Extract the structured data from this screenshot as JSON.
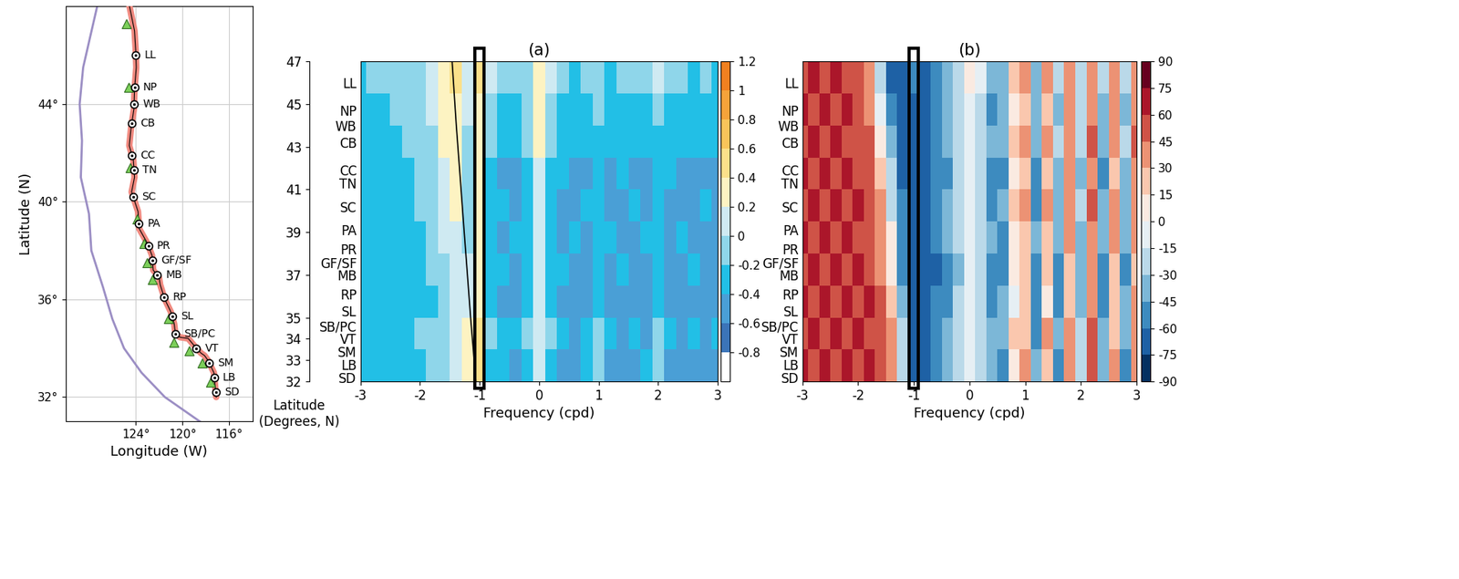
{
  "sites": [
    {
      "label": "LL",
      "lat": 46.0
    },
    {
      "label": "NP",
      "lat": 44.7
    },
    {
      "label": "WB",
      "lat": 44.0
    },
    {
      "label": "CB",
      "lat": 43.2
    },
    {
      "label": "CC",
      "lat": 41.9
    },
    {
      "label": "TN",
      "lat": 41.3
    },
    {
      "label": "SC",
      "lat": 40.2
    },
    {
      "label": "PA",
      "lat": 39.1
    },
    {
      "label": "PR",
      "lat": 38.2
    },
    {
      "label": "GF/SF",
      "lat": 37.6
    },
    {
      "label": "MB",
      "lat": 37.0
    },
    {
      "label": "RP",
      "lat": 36.1
    },
    {
      "label": "SL",
      "lat": 35.3
    },
    {
      "label": "SB/PC",
      "lat": 34.6
    },
    {
      "label": "VT",
      "lat": 34.0
    },
    {
      "label": "SM",
      "lat": 33.4
    },
    {
      "label": "LB",
      "lat": 32.8
    },
    {
      "label": "SD",
      "lat": 32.2
    }
  ],
  "map": {
    "type": "map",
    "xlabel": "Longitude (W)",
    "ylabel": "Latitude (N)",
    "xlim": [
      130,
      114
    ],
    "ylim": [
      31,
      48
    ],
    "xticks": [
      {
        "value": 124,
        "label": "124°"
      },
      {
        "value": 120,
        "label": "120°"
      },
      {
        "value": 116,
        "label": "116°"
      }
    ],
    "yticks": [
      {
        "value": 32,
        "label": "32°"
      },
      {
        "value": 36,
        "label": "36°"
      },
      {
        "value": 40,
        "label": "40°"
      },
      {
        "value": 44,
        "label": "44°"
      }
    ],
    "grid": true,
    "coastline": {
      "lon": [
        124.7,
        124.1,
        124.0,
        123.95,
        124.1,
        124.15,
        124.4,
        124.55,
        124.2,
        124.1,
        124.35,
        123.8,
        123.7,
        123.0,
        122.6,
        122.5,
        122.0,
        121.9,
        121.5,
        121.0,
        120.7,
        120.6,
        120.2,
        119.5,
        118.8,
        118.4,
        118.1,
        117.8,
        117.3,
        117.2,
        117.1
      ],
      "lat": [
        48.4,
        47.0,
        46.2,
        45.5,
        44.6,
        43.8,
        43.0,
        42.3,
        41.7,
        41.0,
        40.4,
        39.6,
        38.9,
        38.3,
        37.8,
        37.2,
        36.9,
        36.6,
        36.0,
        35.5,
        35.0,
        34.6,
        34.45,
        34.4,
        34.0,
        33.8,
        33.7,
        33.5,
        33.0,
        32.5,
        32.0
      ]
    },
    "boundary": {
      "lon": [
        127.3,
        128.5,
        128.8,
        128.6,
        128.7,
        128.0,
        127.8,
        126.8,
        126.0,
        125.0,
        123.5,
        121.5,
        120.0,
        118.5
      ],
      "lat": [
        48.0,
        45.5,
        44.0,
        42.5,
        41.0,
        39.5,
        38.0,
        36.5,
        35.2,
        34.0,
        33.0,
        32.0,
        31.5,
        31.0
      ]
    },
    "buoys": {
      "lon": [
        124.8,
        124.6,
        124.5,
        123.9,
        123.3,
        123.0,
        122.6,
        121.2,
        120.7,
        119.4,
        118.3,
        117.6
      ],
      "lat": [
        47.3,
        44.7,
        41.4,
        39.3,
        38.3,
        37.5,
        36.8,
        35.2,
        34.25,
        33.9,
        33.4,
        32.6
      ]
    }
  },
  "chart_data": [
    {
      "type": "heatmap",
      "title": "(a)",
      "xlabel": "Frequency (cpd)",
      "ylabel": "Latitude\n(Degrees, N)",
      "xlim": [
        -3,
        3
      ],
      "xticks": [
        -3,
        -2,
        -1,
        0,
        1,
        2,
        3
      ],
      "ylim": [
        32,
        47
      ],
      "yticks": [
        47,
        45,
        43,
        41,
        39,
        37,
        35,
        34,
        33,
        32
      ],
      "freq_edges": [
        -3.1,
        -2.9,
        -2.7,
        -2.5,
        -2.3,
        -2.1,
        -1.9,
        -1.7,
        -1.5,
        -1.3,
        -1.1,
        -0.9,
        -0.7,
        -0.5,
        -0.3,
        -0.1,
        0.1,
        0.3,
        0.5,
        0.7,
        0.9,
        1.1,
        1.3,
        1.5,
        1.7,
        1.9,
        2.1,
        2.3,
        2.5,
        2.7,
        2.9,
        3.1
      ],
      "lat_edges": [
        32,
        33.5,
        35,
        36.5,
        38,
        39.5,
        41,
        42.5,
        44,
        45.5,
        47
      ],
      "cells": [
        [
          -0.4,
          -0.4,
          -0.3,
          -0.4,
          -0.3,
          -0.3,
          -0.2,
          -0.1,
          0.0,
          0.3,
          0.4,
          -0.3,
          -0.4,
          -0.5,
          -0.3,
          0.1,
          -0.3,
          -0.5,
          -0.5,
          -0.4,
          -0.1,
          -0.5,
          -0.5,
          -0.5,
          -0.4,
          -0.1,
          -0.5,
          -0.5,
          -0.5,
          -0.5,
          -0.5
        ],
        [
          -0.4,
          -0.3,
          -0.4,
          -0.3,
          -0.3,
          -0.2,
          -0.2,
          -0.1,
          0.1,
          0.3,
          0.4,
          -0.2,
          -0.4,
          -0.4,
          -0.2,
          0.1,
          -0.2,
          -0.4,
          -0.5,
          -0.4,
          -0.2,
          -0.4,
          -0.5,
          -0.4,
          -0.5,
          -0.2,
          -0.4,
          -0.5,
          -0.4,
          -0.5,
          -0.4
        ],
        [
          -0.4,
          -0.4,
          -0.4,
          -0.3,
          -0.4,
          -0.3,
          -0.3,
          -0.1,
          0.1,
          0.1,
          0.3,
          -0.3,
          -0.5,
          -0.5,
          -0.3,
          0.0,
          -0.3,
          -0.5,
          -0.5,
          -0.5,
          -0.3,
          -0.5,
          -0.5,
          -0.5,
          -0.5,
          -0.3,
          -0.5,
          -0.5,
          -0.5,
          -0.5,
          -0.5
        ],
        [
          -0.4,
          -0.4,
          -0.3,
          -0.4,
          -0.3,
          -0.3,
          -0.2,
          -0.1,
          0.1,
          0.0,
          0.3,
          -0.3,
          -0.4,
          -0.5,
          -0.3,
          0.0,
          -0.3,
          -0.4,
          -0.5,
          -0.5,
          -0.3,
          -0.5,
          -0.4,
          -0.5,
          -0.5,
          -0.3,
          -0.5,
          -0.5,
          -0.4,
          -0.5,
          -0.5
        ],
        [
          -0.4,
          -0.4,
          -0.4,
          -0.3,
          -0.3,
          -0.3,
          -0.2,
          0.0,
          0.1,
          -0.1,
          0.3,
          -0.3,
          -0.5,
          -0.4,
          -0.3,
          0.0,
          -0.3,
          -0.5,
          -0.4,
          -0.5,
          -0.3,
          -0.4,
          -0.5,
          -0.5,
          -0.4,
          -0.3,
          -0.5,
          -0.4,
          -0.5,
          -0.5,
          -0.5
        ],
        [
          -0.4,
          -0.4,
          -0.3,
          -0.3,
          -0.3,
          -0.2,
          -0.2,
          0.0,
          0.2,
          -0.1,
          0.3,
          -0.3,
          -0.4,
          -0.5,
          -0.3,
          0.1,
          -0.3,
          -0.5,
          -0.5,
          -0.4,
          -0.3,
          -0.5,
          -0.5,
          -0.4,
          -0.5,
          -0.3,
          -0.5,
          -0.5,
          -0.5,
          -0.4,
          -0.5
        ],
        [
          -0.4,
          -0.3,
          -0.4,
          -0.3,
          -0.3,
          -0.2,
          -0.1,
          0.1,
          0.2,
          -0.1,
          0.3,
          -0.3,
          -0.5,
          -0.5,
          -0.3,
          0.1,
          -0.3,
          -0.4,
          -0.5,
          -0.5,
          -0.3,
          -0.5,
          -0.4,
          -0.5,
          -0.5,
          -0.3,
          -0.4,
          -0.5,
          -0.5,
          -0.5,
          -0.5
        ],
        [
          -0.3,
          -0.4,
          -0.3,
          -0.3,
          -0.2,
          -0.2,
          -0.1,
          0.2,
          0.3,
          -0.1,
          0.3,
          -0.2,
          -0.4,
          -0.4,
          -0.2,
          0.2,
          -0.2,
          -0.4,
          -0.4,
          -0.4,
          -0.3,
          -0.4,
          -0.4,
          -0.4,
          -0.4,
          -0.3,
          -0.4,
          -0.4,
          -0.4,
          -0.4,
          -0.4
        ],
        [
          -0.3,
          -0.3,
          -0.3,
          -0.2,
          -0.2,
          -0.1,
          0.0,
          0.3,
          0.3,
          0.0,
          0.3,
          -0.2,
          -0.3,
          -0.3,
          -0.2,
          0.2,
          -0.2,
          -0.3,
          -0.4,
          -0.3,
          -0.2,
          -0.3,
          -0.4,
          -0.3,
          -0.4,
          -0.2,
          -0.3,
          -0.4,
          -0.3,
          -0.4,
          -0.3
        ],
        [
          -0.3,
          -0.2,
          -0.2,
          -0.2,
          -0.1,
          -0.1,
          0.1,
          0.3,
          0.4,
          0.1,
          0.4,
          0.0,
          -0.2,
          -0.2,
          -0.1,
          0.3,
          0.1,
          -0.2,
          -0.3,
          -0.2,
          -0.1,
          -0.3,
          -0.2,
          -0.2,
          -0.1,
          0.1,
          -0.2,
          -0.2,
          -0.3,
          -0.2,
          -0.3
        ]
      ],
      "cbar_bounds": [
        -1.0,
        -0.8,
        -0.6,
        -0.4,
        -0.2,
        0,
        0.2,
        0.4,
        0.6,
        0.8,
        1.0,
        1.2
      ],
      "cbar_ticks": [
        -0.8,
        -0.6,
        -0.4,
        -0.2,
        0,
        0.2,
        0.4,
        0.6,
        0.8,
        1,
        1.2
      ],
      "inertial_line": {
        "lat": [
          32,
          35,
          38,
          41,
          44,
          47
        ],
        "freq": [
          -1.06,
          -1.15,
          -1.23,
          -1.31,
          -1.39,
          -1.46
        ]
      },
      "highlight": [
        -1.08,
        -0.92
      ]
    },
    {
      "type": "heatmap",
      "title": "(b)",
      "xlabel": "Frequency (cpd)",
      "xlim": [
        -3,
        3
      ],
      "xticks": [
        -3,
        -2,
        -1,
        0,
        1,
        2,
        3
      ],
      "ylim": [
        32,
        47
      ],
      "freq_edges": [
        -3.1,
        -2.9,
        -2.7,
        -2.5,
        -2.3,
        -2.1,
        -1.9,
        -1.7,
        -1.5,
        -1.3,
        -1.1,
        -0.9,
        -0.7,
        -0.5,
        -0.3,
        -0.1,
        0.1,
        0.3,
        0.5,
        0.7,
        0.9,
        1.1,
        1.3,
        1.5,
        1.7,
        1.9,
        2.1,
        2.3,
        2.5,
        2.7,
        2.9,
        3.1
      ],
      "lat_edges": [
        32,
        33.5,
        35,
        36.5,
        38,
        39.5,
        41,
        42.5,
        44,
        45.5,
        47
      ],
      "cells": [
        [
          60,
          55,
          65,
          50,
          60,
          55,
          60,
          50,
          40,
          -20,
          -70,
          -75,
          -60,
          -45,
          -30,
          -10,
          -20,
          -40,
          -50,
          10,
          30,
          -40,
          20,
          -50,
          40,
          -30,
          50,
          -40,
          30,
          -50,
          40
        ],
        [
          55,
          65,
          50,
          60,
          55,
          60,
          55,
          50,
          30,
          -30,
          -70,
          -70,
          -55,
          -40,
          -25,
          -5,
          -25,
          -45,
          -40,
          20,
          25,
          -50,
          30,
          -40,
          35,
          -20,
          45,
          -45,
          25,
          -40,
          35
        ],
        [
          65,
          50,
          60,
          55,
          60,
          50,
          60,
          45,
          20,
          -40,
          -75,
          -70,
          -60,
          -50,
          -30,
          -15,
          -30,
          -50,
          -45,
          -10,
          20,
          -60,
          10,
          -55,
          20,
          -40,
          30,
          -50,
          20,
          -45,
          30
        ],
        [
          50,
          60,
          55,
          65,
          50,
          60,
          55,
          40,
          10,
          -50,
          -75,
          -75,
          -65,
          -50,
          -35,
          -10,
          -25,
          -55,
          -50,
          0,
          15,
          -55,
          15,
          -50,
          25,
          -45,
          35,
          -55,
          25,
          -50,
          20
        ],
        [
          60,
          55,
          60,
          50,
          65,
          55,
          50,
          40,
          0,
          -55,
          -70,
          -70,
          -60,
          -45,
          -30,
          -10,
          -20,
          -45,
          -55,
          10,
          25,
          -45,
          25,
          -40,
          30,
          -35,
          40,
          -45,
          30,
          -40,
          35
        ],
        [
          55,
          60,
          50,
          60,
          55,
          60,
          50,
          30,
          -20,
          -60,
          -75,
          -70,
          -55,
          -45,
          -25,
          -5,
          -25,
          -50,
          -45,
          15,
          30,
          -50,
          30,
          -35,
          40,
          -30,
          45,
          -40,
          35,
          -45,
          40
        ],
        [
          60,
          50,
          65,
          55,
          60,
          50,
          55,
          20,
          -30,
          -65,
          -70,
          -75,
          -60,
          -50,
          -30,
          -10,
          -30,
          -55,
          -50,
          5,
          20,
          -55,
          20,
          -45,
          30,
          -40,
          35,
          -50,
          25,
          -40,
          30
        ],
        [
          55,
          60,
          55,
          60,
          50,
          55,
          45,
          10,
          -45,
          -70,
          -75,
          -70,
          -55,
          -45,
          -25,
          -5,
          -20,
          -45,
          -40,
          20,
          30,
          -40,
          30,
          -30,
          40,
          -25,
          45,
          -35,
          40,
          -30,
          45
        ],
        [
          60,
          55,
          60,
          55,
          60,
          50,
          40,
          -10,
          -55,
          -75,
          -70,
          -70,
          -60,
          -45,
          -30,
          -10,
          -25,
          -50,
          -45,
          10,
          25,
          -45,
          25,
          -40,
          30,
          -30,
          40,
          -40,
          30,
          -35,
          35
        ],
        [
          55,
          60,
          50,
          60,
          55,
          45,
          30,
          -30,
          -65,
          -70,
          -60,
          -65,
          -50,
          -35,
          -20,
          0,
          -15,
          -40,
          -35,
          20,
          30,
          -35,
          30,
          -25,
          35,
          -20,
          40,
          -30,
          35,
          -25,
          40
        ]
      ],
      "cbar_bounds": [
        -90,
        -75,
        -60,
        -45,
        -30,
        -15,
        0,
        15,
        30,
        45,
        60,
        75,
        90
      ],
      "cbar_ticks": [
        -90,
        -75,
        -60,
        -45,
        -30,
        -15,
        0,
        15,
        30,
        45,
        60,
        75,
        90
      ],
      "highlight": [
        -1.08,
        -0.92
      ]
    }
  ]
}
